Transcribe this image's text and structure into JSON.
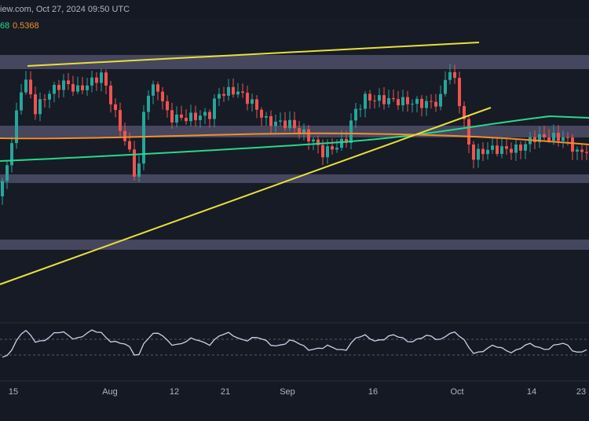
{
  "header": {
    "source": "iew.com, Oct 27, 2024 09:50 UTC"
  },
  "indicators": {
    "ma_short": "68",
    "ma_long": "0.5368"
  },
  "x_axis": {
    "labels": [
      "15",
      "Aug",
      "12",
      "21",
      "Sep",
      "16",
      "Oct",
      "14",
      "23"
    ]
  }
}
